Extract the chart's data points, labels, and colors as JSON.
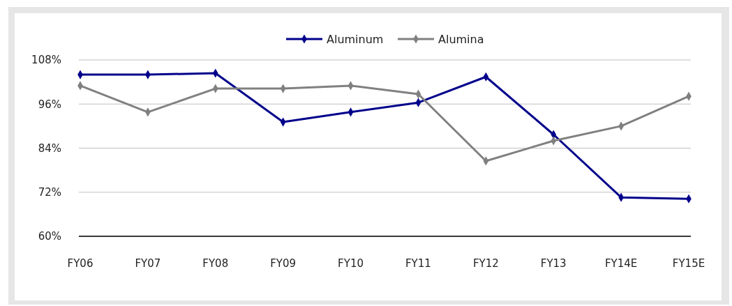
{
  "chart_data": {
    "type": "line",
    "categories": [
      "FY06",
      "FY07",
      "FY08",
      "FY09",
      "FY10",
      "FY11",
      "FY12",
      "FY13",
      "FY14E",
      "FY15E"
    ],
    "series": [
      {
        "name": "Aluminum",
        "color": "#00008b",
        "values": [
          104.0,
          104.0,
          104.4,
          91.1,
          93.8,
          96.4,
          103.4,
          87.7,
          70.6,
          70.2
        ]
      },
      {
        "name": "Alumina",
        "color": "#808080",
        "values": [
          101.0,
          93.8,
          100.2,
          100.2,
          101.0,
          98.7,
          80.5,
          86.0,
          90.0,
          98.1
        ]
      }
    ],
    "ylim": [
      60,
      108
    ],
    "yticks": [
      {
        "value": 60,
        "label": "60%"
      },
      {
        "value": 72,
        "label": "72%"
      },
      {
        "value": 84,
        "label": "84%"
      },
      {
        "value": 96,
        "label": "96%"
      },
      {
        "value": 108,
        "label": "108%"
      }
    ],
    "grid": "y",
    "legend": "top",
    "marker": "diamond",
    "line_style": "solid"
  }
}
